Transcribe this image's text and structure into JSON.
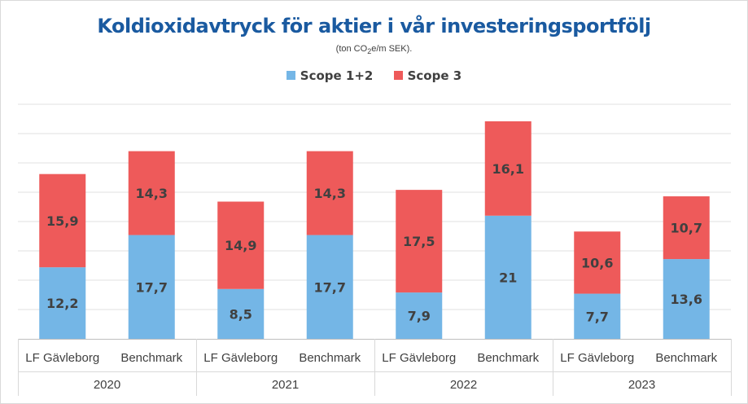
{
  "chart_data": {
    "type": "bar",
    "stacked": true,
    "title": "Koldioxidavtryck för aktier i vår investeringsportfölj",
    "subtitle_prefix": "(ton CO",
    "subtitle_sub": "2",
    "subtitle_suffix": "e/m SEK).",
    "groups": [
      {
        "year": "2020",
        "categories": [
          "LF Gävleborg",
          "Benchmark"
        ]
      },
      {
        "year": "2021",
        "categories": [
          "LF Gävleborg",
          "Benchmark"
        ]
      },
      {
        "year": "2022",
        "categories": [
          "LF Gävleborg",
          "Benchmark"
        ]
      },
      {
        "year": "2023",
        "categories": [
          "LF Gävleborg",
          "Benchmark"
        ]
      }
    ],
    "series": [
      {
        "name": "Scope 1+2",
        "color": "#74b6e6",
        "values": [
          12.2,
          17.7,
          8.5,
          17.7,
          7.9,
          21,
          7.7,
          13.6
        ],
        "labels": [
          "12,2",
          "17,7",
          "8,5",
          "17,7",
          "7,9",
          "21",
          "7,7",
          "13,6"
        ]
      },
      {
        "name": "Scope 3",
        "color": "#ee5a5a",
        "values": [
          15.9,
          14.3,
          14.9,
          14.3,
          17.5,
          16.1,
          10.6,
          10.7
        ],
        "labels": [
          "15,9",
          "14,3",
          "14,9",
          "14,3",
          "17,5",
          "16,1",
          "10,6",
          "10,7"
        ]
      }
    ],
    "ylim": [
      0,
      40
    ],
    "gridlines": true,
    "legend_position": "top-center",
    "xlabel": "",
    "ylabel": ""
  }
}
